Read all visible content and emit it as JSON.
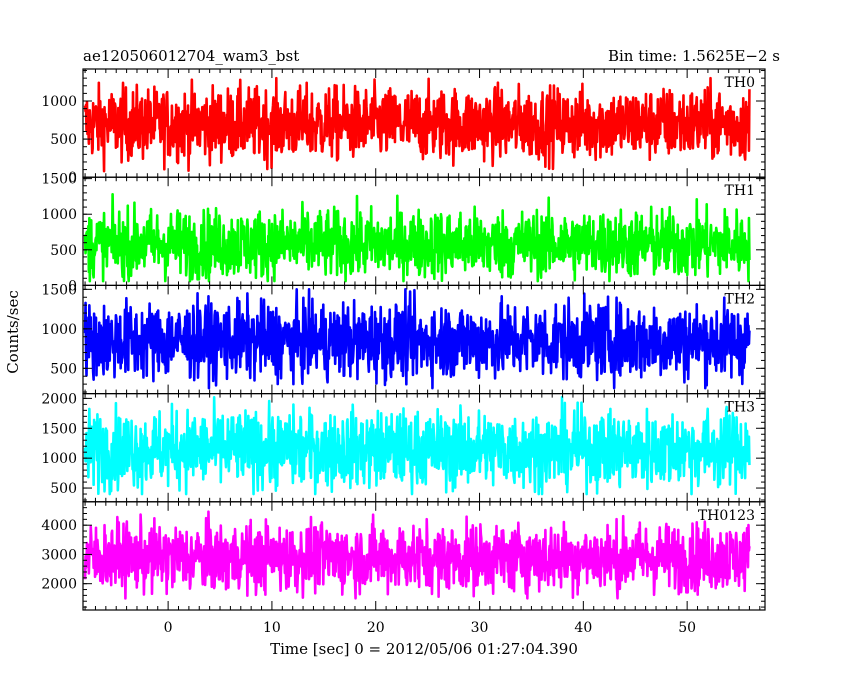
{
  "header": {
    "left_title": "ae120506012704_wam3_bst",
    "right_title": "Bin time: 1.5625E−2 s"
  },
  "chart_data": {
    "type": "line",
    "ylabel": "Counts/sec",
    "xlabel": "Time [sec] 0 = 2012/05/06 01:27:04.390",
    "xlim": [
      -8.2,
      57.5
    ],
    "data_x_range": [
      -8.0,
      56.0
    ],
    "bin_time": 0.015625,
    "x_ticks": [
      0,
      10,
      20,
      30,
      40,
      50
    ],
    "x_minor_step": 1,
    "grid": false,
    "panels": [
      {
        "name": "TH0",
        "color": "#ff0000",
        "ylim": [
          0,
          1420
        ],
        "y_ticks": [
          0,
          500,
          1000
        ],
        "y_minor_step": 100,
        "lower_envelope": 80,
        "upper_envelope": 1300,
        "mean": 700
      },
      {
        "name": "TH1",
        "color": "#00ff00",
        "ylim": [
          0,
          1520
        ],
        "y_ticks": [
          0,
          500,
          1000,
          1500
        ],
        "y_minor_step": 100,
        "lower_envelope": 60,
        "upper_envelope": 1300,
        "mean": 580
      },
      {
        "name": "TH2",
        "color": "#0000ff",
        "ylim": [
          180,
          1550
        ],
        "y_ticks": [
          500,
          1000,
          1500
        ],
        "y_minor_step": 100,
        "lower_envelope": 250,
        "upper_envelope": 1500,
        "mean": 850
      },
      {
        "name": "TH3",
        "color": "#00ffff",
        "ylim": [
          270,
          2080
        ],
        "y_ticks": [
          500,
          1000,
          1500,
          2000
        ],
        "y_minor_step": 100,
        "lower_envelope": 400,
        "upper_envelope": 2050,
        "mean": 1150
      },
      {
        "name": "TH0123",
        "color": "#ff00ff",
        "ylim": [
          1100,
          4800
        ],
        "y_ticks": [
          2000,
          3000,
          4000
        ],
        "y_minor_step": 200,
        "lower_envelope": 1500,
        "upper_envelope": 4500,
        "mean": 2900
      }
    ]
  }
}
